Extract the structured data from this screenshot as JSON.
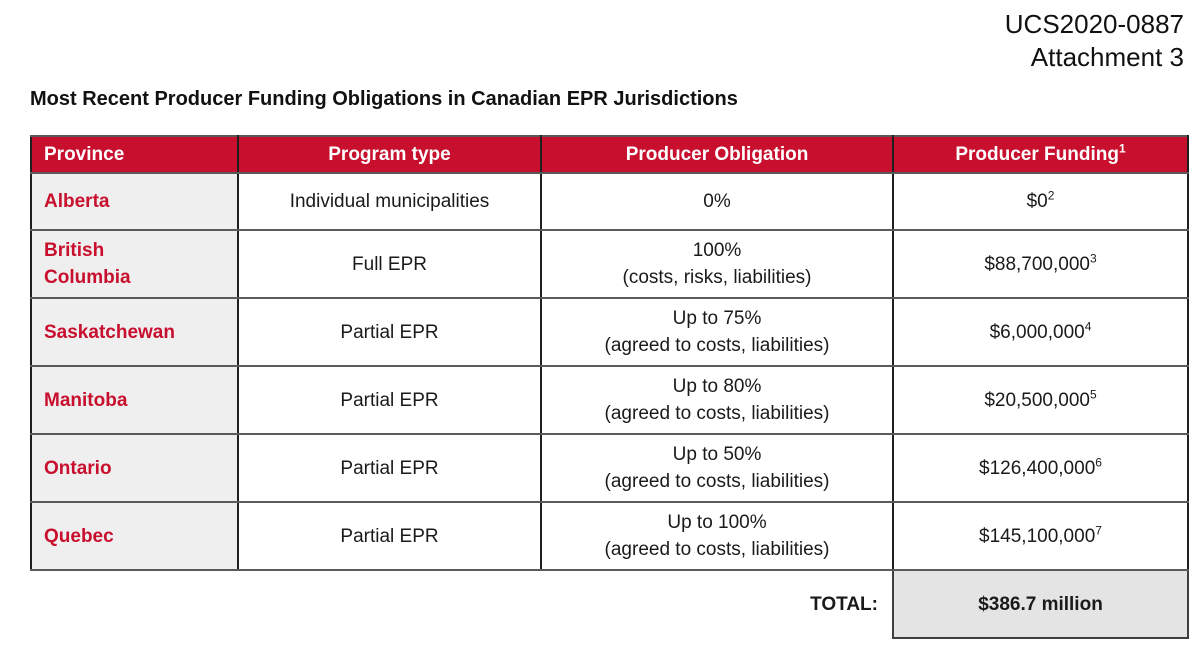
{
  "document": {
    "reference": "UCS2020-0887",
    "attachment": "Attachment 3",
    "title": "Most Recent Producer Funding Obligations in Canadian EPR Jurisdictions"
  },
  "table": {
    "columns": [
      "Province",
      "Program type",
      "Producer Obligation",
      "Producer Funding"
    ],
    "funding_header_sup": "1",
    "rows": [
      {
        "province": "Alberta",
        "program_type": "Individual municipalities",
        "obligation": "0%",
        "obligation_note": "",
        "funding": "$0",
        "funding_sup": "2"
      },
      {
        "province": "British Columbia",
        "program_type": "Full EPR",
        "obligation": "100%",
        "obligation_note": "(costs, risks, liabilities)",
        "funding": "$88,700,000",
        "funding_sup": "3"
      },
      {
        "province": "Saskatchewan",
        "program_type": "Partial EPR",
        "obligation": "Up to 75%",
        "obligation_note": "(agreed to costs, liabilities)",
        "funding": "$6,000,000",
        "funding_sup": "4"
      },
      {
        "province": "Manitoba",
        "program_type": "Partial EPR",
        "obligation": "Up to 80%",
        "obligation_note": "(agreed to costs, liabilities)",
        "funding": "$20,500,000",
        "funding_sup": "5"
      },
      {
        "province": "Ontario",
        "program_type": "Partial EPR",
        "obligation": "Up to 50%",
        "obligation_note": "(agreed to costs, liabilities)",
        "funding": "$126,400,000",
        "funding_sup": "6"
      },
      {
        "province": "Quebec",
        "program_type": "Partial EPR",
        "obligation": "Up to 100%",
        "obligation_note": "(agreed to costs, liabilities)",
        "funding": "$145,100,000",
        "funding_sup": "7"
      }
    ],
    "total_label": "TOTAL:",
    "total_value": "$386.7 million"
  },
  "colors": {
    "header_bg": "#C8102E",
    "header_text": "#FFFFFF",
    "province_text": "#C8102E",
    "province_cell_bg": "#EFEFEF",
    "total_cell_bg": "#E4E4E4",
    "body_text": "#1A1A1A"
  }
}
